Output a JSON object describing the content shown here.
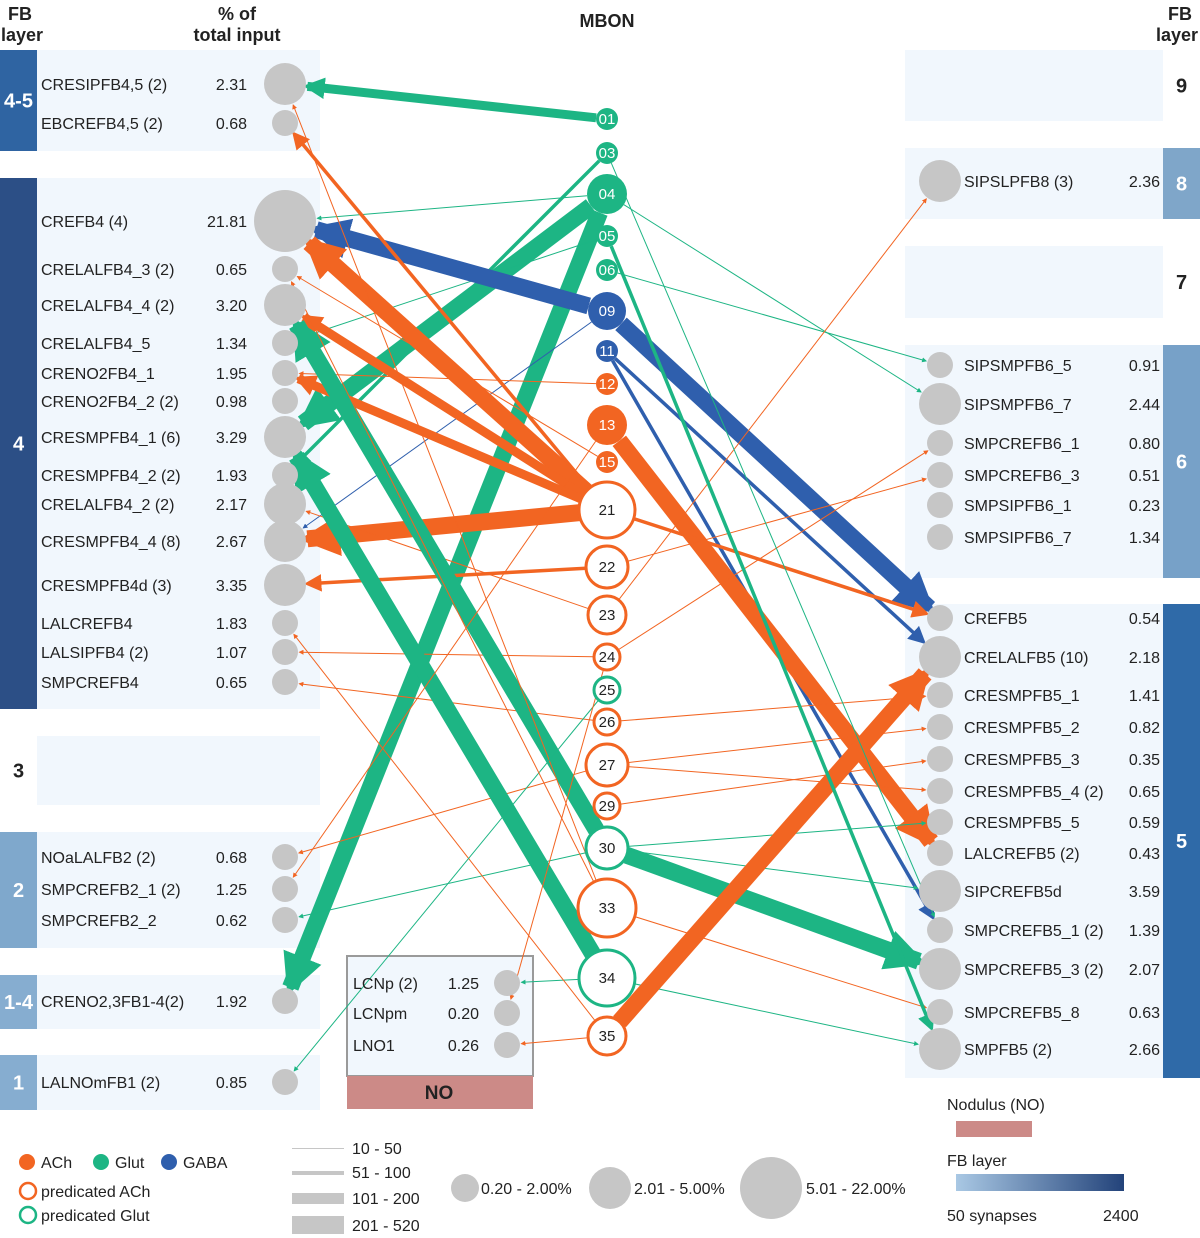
{
  "headers": {
    "left_layer": "FB layer",
    "left_layer_line1": "FB",
    "left_layer_line2": "layer",
    "percent_line1": "% of",
    "percent_line2": "total input",
    "mbon": "MBON",
    "right_layer_line1": "FB",
    "right_layer_line2": "layer"
  },
  "colors": {
    "ach": "#f26522",
    "glut": "#1db584",
    "gaba": "#2f5fad",
    "input_circle": "#c6c6c6",
    "panel_bg": "#f1f7fd",
    "no_box": "#cc8a87",
    "layer_light": "#8db2d6",
    "layer_dark": "#2b4f84"
  },
  "left_layers": [
    {
      "label": "4-5",
      "color": "#2f64a2"
    },
    {
      "label": "4",
      "color": "#2c4f86"
    },
    {
      "label": "3",
      "color": ""
    },
    {
      "label": "2",
      "color": "#7fa8cc"
    },
    {
      "label": "1-4",
      "color": "#86add0"
    },
    {
      "label": "1",
      "color": "#86add0"
    }
  ],
  "right_layers": [
    {
      "label": "9",
      "color": ""
    },
    {
      "label": "8",
      "color": "#7fa6c9"
    },
    {
      "label": "7",
      "color": ""
    },
    {
      "label": "6",
      "color": "#77a1c8"
    },
    {
      "label": "5",
      "color": "#2f6aa8"
    }
  ],
  "left_nodes": [
    {
      "name": "CRESIPFB4,5 (2)",
      "pct": "2.31"
    },
    {
      "name": "EBCREFB4,5  (2)",
      "pct": "0.68"
    },
    {
      "name": "CREFB4 (4)",
      "pct": "21.81"
    },
    {
      "name": "CRELALFB4_3  (2)",
      "pct": "0.65"
    },
    {
      "name": "CRELALFB4_4 (2)",
      "pct": "3.20"
    },
    {
      "name": "CRELALFB4_5",
      "pct": "1.34"
    },
    {
      "name": "CRENO2FB4_1",
      "pct": "1.95"
    },
    {
      "name": "CRENO2FB4_2 (2)",
      "pct": "0.98"
    },
    {
      "name": "CRESMPFB4_1 (6)",
      "pct": "3.29"
    },
    {
      "name": "CRESMPFB4_2 (2)",
      "pct": "1.93"
    },
    {
      "name": "CRELALFB4_2 (2)",
      "pct": "2.17"
    },
    {
      "name": "CRESMPFB4_4 (8)",
      "pct": "2.67"
    },
    {
      "name": "CRESMPFB4d (3)",
      "pct": "3.35"
    },
    {
      "name": "LALCREFB4",
      "pct": "1.83"
    },
    {
      "name": "LALSIPFB4 (2)",
      "pct": "1.07"
    },
    {
      "name": "SMPCREFB4",
      "pct": "0.65"
    },
    {
      "name": "NOaLALFB2 (2)",
      "pct": "0.68"
    },
    {
      "name": "SMPCREFB2_1 (2)",
      "pct": "1.25"
    },
    {
      "name": "SMPCREFB2_2",
      "pct": "0.62"
    },
    {
      "name": "CRENO2,3FB1-4(2)",
      "pct": "1.92"
    },
    {
      "name": "LALNOmFB1 (2)",
      "pct": "0.85"
    }
  ],
  "no_nodes": [
    {
      "name": "LCNp (2)",
      "pct": "1.25"
    },
    {
      "name": "LCNpm",
      "pct": "0.20"
    },
    {
      "name": "LNO1",
      "pct": "0.26"
    }
  ],
  "no_label": "NO",
  "right_nodes": [
    {
      "name": "SIPSLPFB8 (3)",
      "pct": "2.36"
    },
    {
      "name": "SIPSMPFB6_5",
      "pct": "0.91"
    },
    {
      "name": "SIPSMPFB6_7",
      "pct": "2.44"
    },
    {
      "name": "SMPCREFB6_1",
      "pct": "0.80"
    },
    {
      "name": "SMPCREFB6_3",
      "pct": "0.51"
    },
    {
      "name": "SMPSIPFB6_1",
      "pct": "0.23"
    },
    {
      "name": "SMPSIPFB6_7",
      "pct": "1.34"
    },
    {
      "name": "CREFB5",
      "pct": "0.54"
    },
    {
      "name": "CRELALFB5 (10)",
      "pct": "2.18"
    },
    {
      "name": "CRESMPFB5_1",
      "pct": "1.41"
    },
    {
      "name": "CRESMPFB5_2",
      "pct": "0.82"
    },
    {
      "name": "CRESMPFB5_3",
      "pct": "0.35"
    },
    {
      "name": "CRESMPFB5_4 (2)",
      "pct": "0.65"
    },
    {
      "name": "CRESMPFB5_5",
      "pct": "0.59"
    },
    {
      "name": "LALCREFB5 (2)",
      "pct": "0.43"
    },
    {
      "name": "SIPCREFB5d",
      "pct": "3.59"
    },
    {
      "name": "SMPCREFB5_1 (2)",
      "pct": "1.39"
    },
    {
      "name": "SMPCREFB5_3 (2)",
      "pct": "2.07"
    },
    {
      "name": "SMPCREFB5_8",
      "pct": "0.63"
    },
    {
      "name": "SMPFB5 (2)",
      "pct": "2.66"
    }
  ],
  "mbons": [
    {
      "id": "01",
      "type": "glut",
      "style": "filled"
    },
    {
      "id": "03",
      "type": "glut",
      "style": "filled"
    },
    {
      "id": "04",
      "type": "glut",
      "style": "filled"
    },
    {
      "id": "05",
      "type": "glut",
      "style": "filled"
    },
    {
      "id": "06",
      "type": "glut",
      "style": "filled"
    },
    {
      "id": "09",
      "type": "gaba",
      "style": "filled"
    },
    {
      "id": "11",
      "type": "gaba",
      "style": "filled"
    },
    {
      "id": "12",
      "type": "ach",
      "style": "filled"
    },
    {
      "id": "13",
      "type": "ach",
      "style": "filled"
    },
    {
      "id": "15",
      "type": "ach",
      "style": "filled"
    },
    {
      "id": "21",
      "type": "ach",
      "style": "predicted"
    },
    {
      "id": "22",
      "type": "ach",
      "style": "predicted"
    },
    {
      "id": "23",
      "type": "ach",
      "style": "predicted"
    },
    {
      "id": "24",
      "type": "ach",
      "style": "predicted"
    },
    {
      "id": "25",
      "type": "glut",
      "style": "predicted"
    },
    {
      "id": "26",
      "type": "ach",
      "style": "predicted"
    },
    {
      "id": "27",
      "type": "ach",
      "style": "predicted"
    },
    {
      "id": "29",
      "type": "ach",
      "style": "predicted"
    },
    {
      "id": "30",
      "type": "glut",
      "style": "predicted"
    },
    {
      "id": "33",
      "type": "ach",
      "style": "predicted"
    },
    {
      "id": "34",
      "type": "glut",
      "style": "predicted"
    },
    {
      "id": "35",
      "type": "ach",
      "style": "predicted"
    }
  ],
  "legend": {
    "ach": "ACh",
    "glut": "Glut",
    "gaba": "GABA",
    "pred_ach": "predicated ACh",
    "pred_glut": "predicated Glut",
    "widths": [
      "10 - 50",
      "51 - 100",
      "101 - 200",
      "201 - 520"
    ],
    "sizes": [
      "0.20 - 2.00%",
      "2.01 - 5.00%",
      "5.01 - 22.00%"
    ],
    "nodulus": "Nodulus (NO)",
    "fb_layer": "FB layer",
    "grad_min": "50 synapses",
    "grad_max": "2400"
  }
}
